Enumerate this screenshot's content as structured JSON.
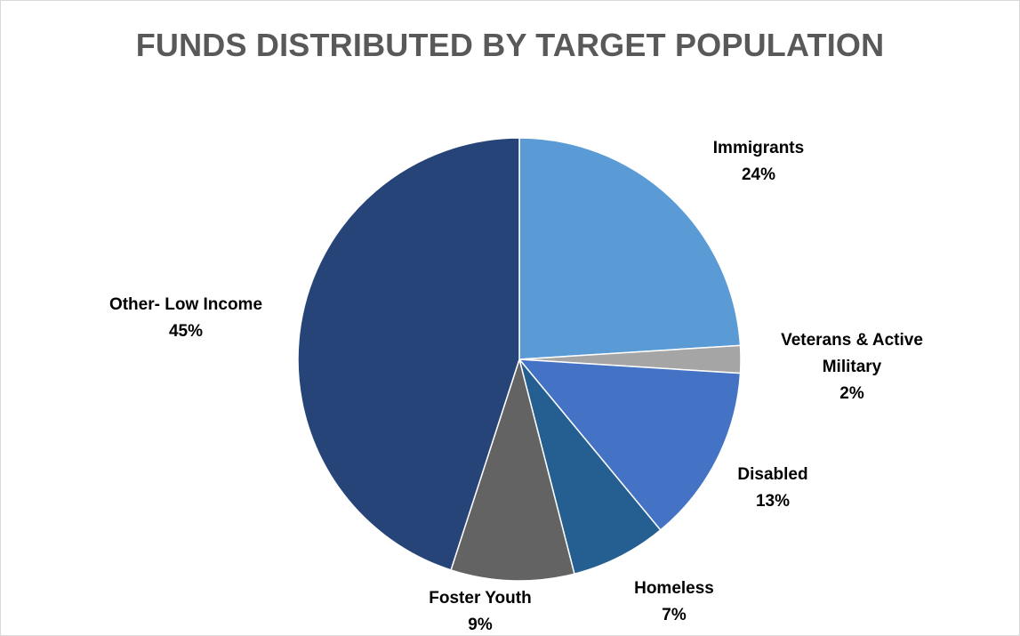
{
  "chart_data": {
    "type": "pie",
    "title": "FUNDS DISTRIBUTED BY TARGET POPULATION",
    "slices": [
      {
        "name": "Immigrants",
        "value": 24,
        "pct_label": "24%",
        "color": "#5b9bd5",
        "label_lines": [
          "Immigrants"
        ]
      },
      {
        "name": "Veterans & Active Military",
        "value": 2,
        "pct_label": "2%",
        "color": "#a5a5a5",
        "label_lines": [
          "Veterans & Active",
          "Military"
        ]
      },
      {
        "name": "Disabled",
        "value": 13,
        "pct_label": "13%",
        "color": "#4472c4",
        "label_lines": [
          "Disabled"
        ]
      },
      {
        "name": "Homeless",
        "value": 7,
        "pct_label": "7%",
        "color": "#255e91",
        "label_lines": [
          "Homeless"
        ]
      },
      {
        "name": "Foster Youth",
        "value": 9,
        "pct_label": "9%",
        "color": "#636363",
        "label_lines": [
          "Foster Youth"
        ]
      },
      {
        "name": "Other- Low Income",
        "value": 45,
        "pct_label": "45%",
        "color": "#264478",
        "label_lines": [
          "Other- Low Income"
        ]
      }
    ],
    "legend": "none",
    "label_position": "outside"
  }
}
